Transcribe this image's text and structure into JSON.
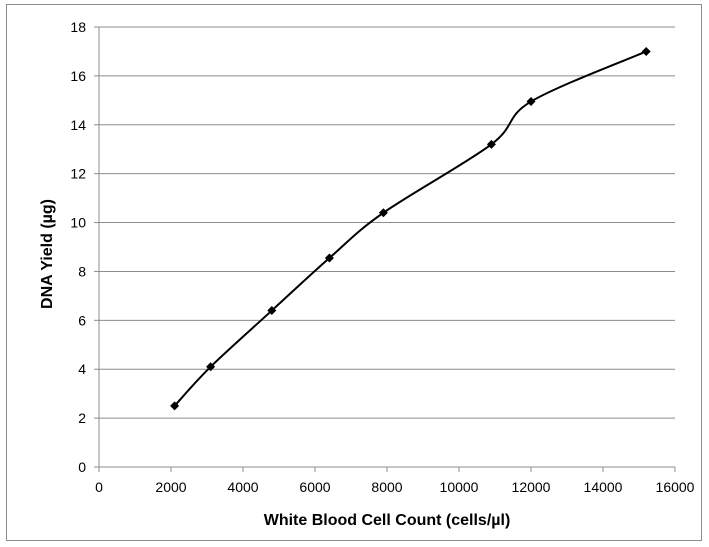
{
  "chart_data": {
    "type": "line",
    "title": "",
    "xlabel": "White Blood Cell Count (cells/µl)",
    "ylabel": "DNA Yield (µg)",
    "xlim": [
      0,
      16000
    ],
    "ylim": [
      0,
      18
    ],
    "x_ticks": [
      0,
      2000,
      4000,
      6000,
      8000,
      10000,
      12000,
      14000,
      16000
    ],
    "y_ticks": [
      0,
      2,
      4,
      6,
      8,
      10,
      12,
      14,
      16,
      18
    ],
    "grid": "horizontal",
    "legend": "none",
    "series": [
      {
        "x": [
          2100,
          3100,
          4800,
          6400,
          7900,
          10900,
          12000,
          15200
        ],
        "y": [
          2.5,
          4.1,
          6.4,
          8.55,
          10.4,
          13.2,
          14.95,
          17.0
        ],
        "color": "#000000",
        "marker": "diamond",
        "smooth": true
      }
    ]
  }
}
